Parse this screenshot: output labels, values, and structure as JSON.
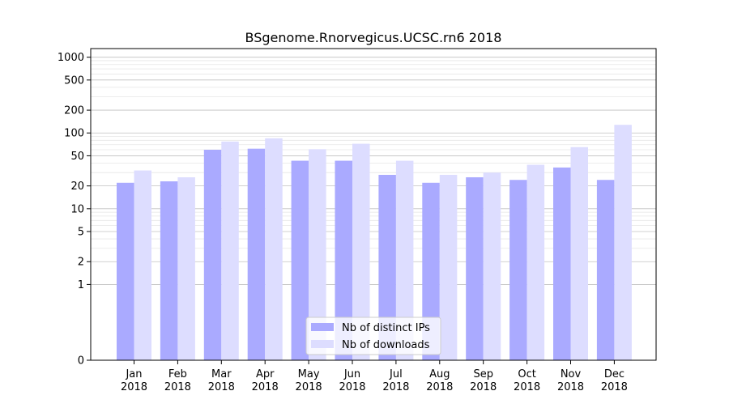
{
  "chart_data": {
    "type": "bar",
    "title": "BSgenome.Rnorvegicus.UCSC.rn6 2018",
    "xlabel": "",
    "ylabel": "",
    "y_scale": "symlog",
    "ylim": [
      0,
      1300
    ],
    "y_ticks": [
      0,
      1,
      2,
      5,
      10,
      20,
      50,
      100,
      200,
      500,
      1000
    ],
    "categories": [
      [
        "Jan",
        "2018"
      ],
      [
        "Feb",
        "2018"
      ],
      [
        "Mar",
        "2018"
      ],
      [
        "Apr",
        "2018"
      ],
      [
        "May",
        "2018"
      ],
      [
        "Jun",
        "2018"
      ],
      [
        "Jul",
        "2018"
      ],
      [
        "Aug",
        "2018"
      ],
      [
        "Sep",
        "2018"
      ],
      [
        "Oct",
        "2018"
      ],
      [
        "Nov",
        "2018"
      ],
      [
        "Dec",
        "2018"
      ]
    ],
    "series": [
      {
        "name": "Nb of distinct IPs",
        "color": "#aaaaff",
        "values": [
          22,
          23,
          60,
          62,
          43,
          43,
          28,
          22,
          26,
          24,
          35,
          24
        ]
      },
      {
        "name": "Nb of downloads",
        "color": "#ddddff",
        "values": [
          32,
          26,
          77,
          85,
          61,
          72,
          43,
          28,
          30,
          38,
          65,
          128
        ]
      }
    ],
    "legend_position": "bottom-center",
    "grid": true
  }
}
